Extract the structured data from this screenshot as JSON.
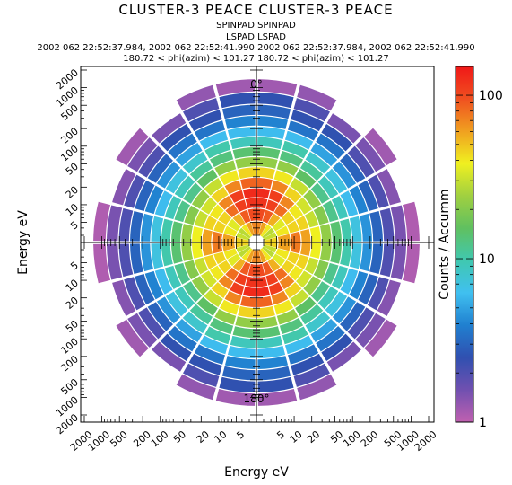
{
  "header": {
    "title": "CLUSTER-3 PEACE CLUSTER-3 PEACE",
    "subtitle_1": "SPINPAD SPINPAD",
    "subtitle_2": "LSPAD LSPAD",
    "subtitle_3": "2002 062 22:52:37.984, 2002 062 22:52:41.990 2002 062 22:52:37.984, 2002 062 22:52:41.990",
    "subtitle_4": "180.72 < phi(azim) < 101.27 180.72 < phi(azim) < 101.27"
  },
  "chart_data": {
    "type": "heatmap",
    "subtype": "polar energy-angle distribution",
    "xlabel": "Energy eV",
    "ylabel": "Energy eV",
    "angle_labels": {
      "top": "0°",
      "bottom": "180°"
    },
    "x_tick_labels_left": [
      "2000",
      "1000",
      "500",
      "200",
      "100",
      "50",
      "20",
      "10",
      "5"
    ],
    "x_tick_labels_right": [
      "5",
      "10",
      "20",
      "50",
      "100",
      "200",
      "500",
      "1000",
      "2000"
    ],
    "y_tick_labels_top": [
      "2000",
      "1000",
      "500",
      "200",
      "100",
      "50",
      "20",
      "10",
      "5"
    ],
    "y_tick_labels_bottom": [
      "5",
      "10",
      "20",
      "50",
      "100",
      "200",
      "500",
      "1000",
      "2000"
    ],
    "energy_scale": "log",
    "energy_range_eV": [
      3,
      2000
    ],
    "colorbar": {
      "label": "Counts / Accumm",
      "scale": "log",
      "range": [
        1,
        150
      ],
      "tick_labels": [
        "100",
        "10",
        "1"
      ],
      "tick_values": [
        100,
        10,
        1
      ],
      "colors": [
        "#c060b0",
        "#7050b0",
        "#3050b0",
        "#2080d0",
        "#40c0f0",
        "#40c8b0",
        "#60c060",
        "#a0d040",
        "#f0f020",
        "#f0a020",
        "#f05020",
        "#f01818"
      ]
    },
    "energy_bins_eV": [
      4,
      7,
      11,
      16,
      24,
      36,
      55,
      80,
      120,
      180,
      270,
      420,
      650,
      1100
    ],
    "pitch_angle_bins_deg": [
      7.5,
      22.5,
      37.5,
      52.5,
      67.5,
      82.5,
      97.5,
      112.5,
      127.5,
      142.5,
      157.5,
      172.5
    ],
    "counts_by_energy": [
      [
        70,
        60,
        40,
        28,
        30,
        45,
        45,
        30,
        28,
        40,
        60,
        70
      ],
      [
        100,
        90,
        55,
        35,
        40,
        60,
        60,
        40,
        35,
        55,
        90,
        100
      ],
      [
        120,
        110,
        80,
        45,
        45,
        75,
        75,
        45,
        45,
        80,
        110,
        120
      ],
      [
        130,
        110,
        70,
        40,
        45,
        60,
        60,
        45,
        40,
        70,
        110,
        130
      ],
      [
        85,
        70,
        45,
        32,
        30,
        38,
        38,
        30,
        32,
        45,
        70,
        85
      ],
      [
        45,
        40,
        30,
        22,
        20,
        22,
        22,
        20,
        22,
        30,
        40,
        45
      ],
      [
        22,
        22,
        15,
        12,
        12,
        14,
        14,
        12,
        12,
        15,
        22,
        22
      ],
      [
        14,
        13,
        11,
        9,
        9,
        10,
        10,
        9,
        9,
        11,
        13,
        14
      ],
      [
        9,
        10,
        8,
        7,
        6,
        7,
        7,
        6,
        7,
        8,
        10,
        9
      ],
      [
        6,
        6,
        5,
        4.5,
        4,
        4.5,
        4.5,
        4,
        4.5,
        5,
        6,
        6
      ],
      [
        4,
        3.5,
        3.5,
        3,
        3,
        3,
        3,
        3,
        3,
        3.5,
        3.5,
        4
      ],
      [
        3,
        2.5,
        2.5,
        2,
        2,
        2,
        2,
        2,
        2,
        2.5,
        2.5,
        3
      ],
      [
        2.5,
        2,
        1.5,
        1.5,
        1.4,
        1.5,
        1.5,
        1.4,
        1.5,
        1.5,
        2,
        2.5
      ],
      [
        1.2,
        1.3,
        0,
        1.2,
        0,
        1.1,
        1.1,
        0,
        1.2,
        0,
        1.3,
        1.2
      ]
    ]
  }
}
